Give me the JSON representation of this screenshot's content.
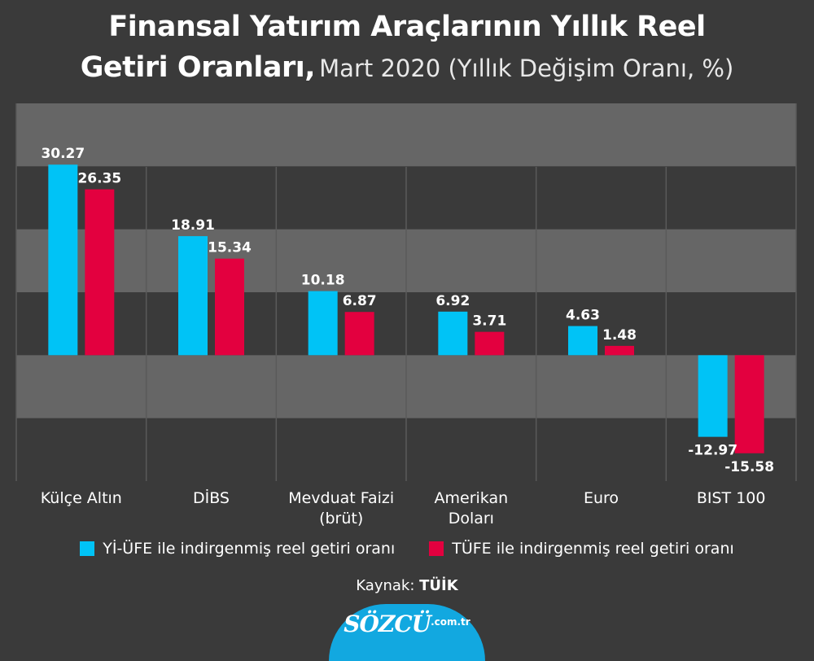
{
  "title": {
    "line1": "Finansal Yatırım Araçlarının Yıllık Reel",
    "line2_main": "Getiri Oranları,",
    "line2_sub": "Mart 2020 (Yıllık Değişim Oranı, %)"
  },
  "chart_data": {
    "type": "bar",
    "title": "Finansal Yatırım Araçlarının Yıllık Reel Getiri Oranları, Mart 2020 (Yıllık Değişim Oranı, %)",
    "categories": [
      "Külçe Altın",
      "DİBS",
      "Mevduat Faizi (brüt)",
      "Amerikan Doları",
      "Euro",
      "BIST 100"
    ],
    "category_lines": [
      [
        "Külçe Altın"
      ],
      [
        "DİBS"
      ],
      [
        "Mevduat Faizi",
        "(brüt)"
      ],
      [
        "Amerikan",
        "Doları"
      ],
      [
        "Euro"
      ],
      [
        "BIST 100"
      ]
    ],
    "series": [
      {
        "name": "Yİ-ÜFE ile indirgenmiş reel getiri oranı",
        "color": "#00c3f6",
        "values": [
          30.27,
          18.91,
          10.18,
          6.92,
          4.63,
          -12.97
        ],
        "labels": [
          "30.27",
          "18.91",
          "10.18",
          "6.92",
          "4.63",
          "-12.97"
        ]
      },
      {
        "name": "TÜFE ile indirgenmiş reel getiri oranı",
        "color": "#e3003f",
        "values": [
          26.35,
          15.34,
          6.87,
          3.71,
          1.48,
          -15.58
        ],
        "labels": [
          "26.35",
          "15.34",
          "6.87",
          "3.71",
          "1.48",
          "-15.58"
        ]
      }
    ],
    "ylim": [
      -20,
      40
    ],
    "grid": true,
    "legend": "bottom"
  },
  "source": {
    "label": "Kaynak:",
    "value": "TÜİK"
  },
  "logo": {
    "main": "SÖZCÜ",
    "domain": ".com.tr"
  }
}
